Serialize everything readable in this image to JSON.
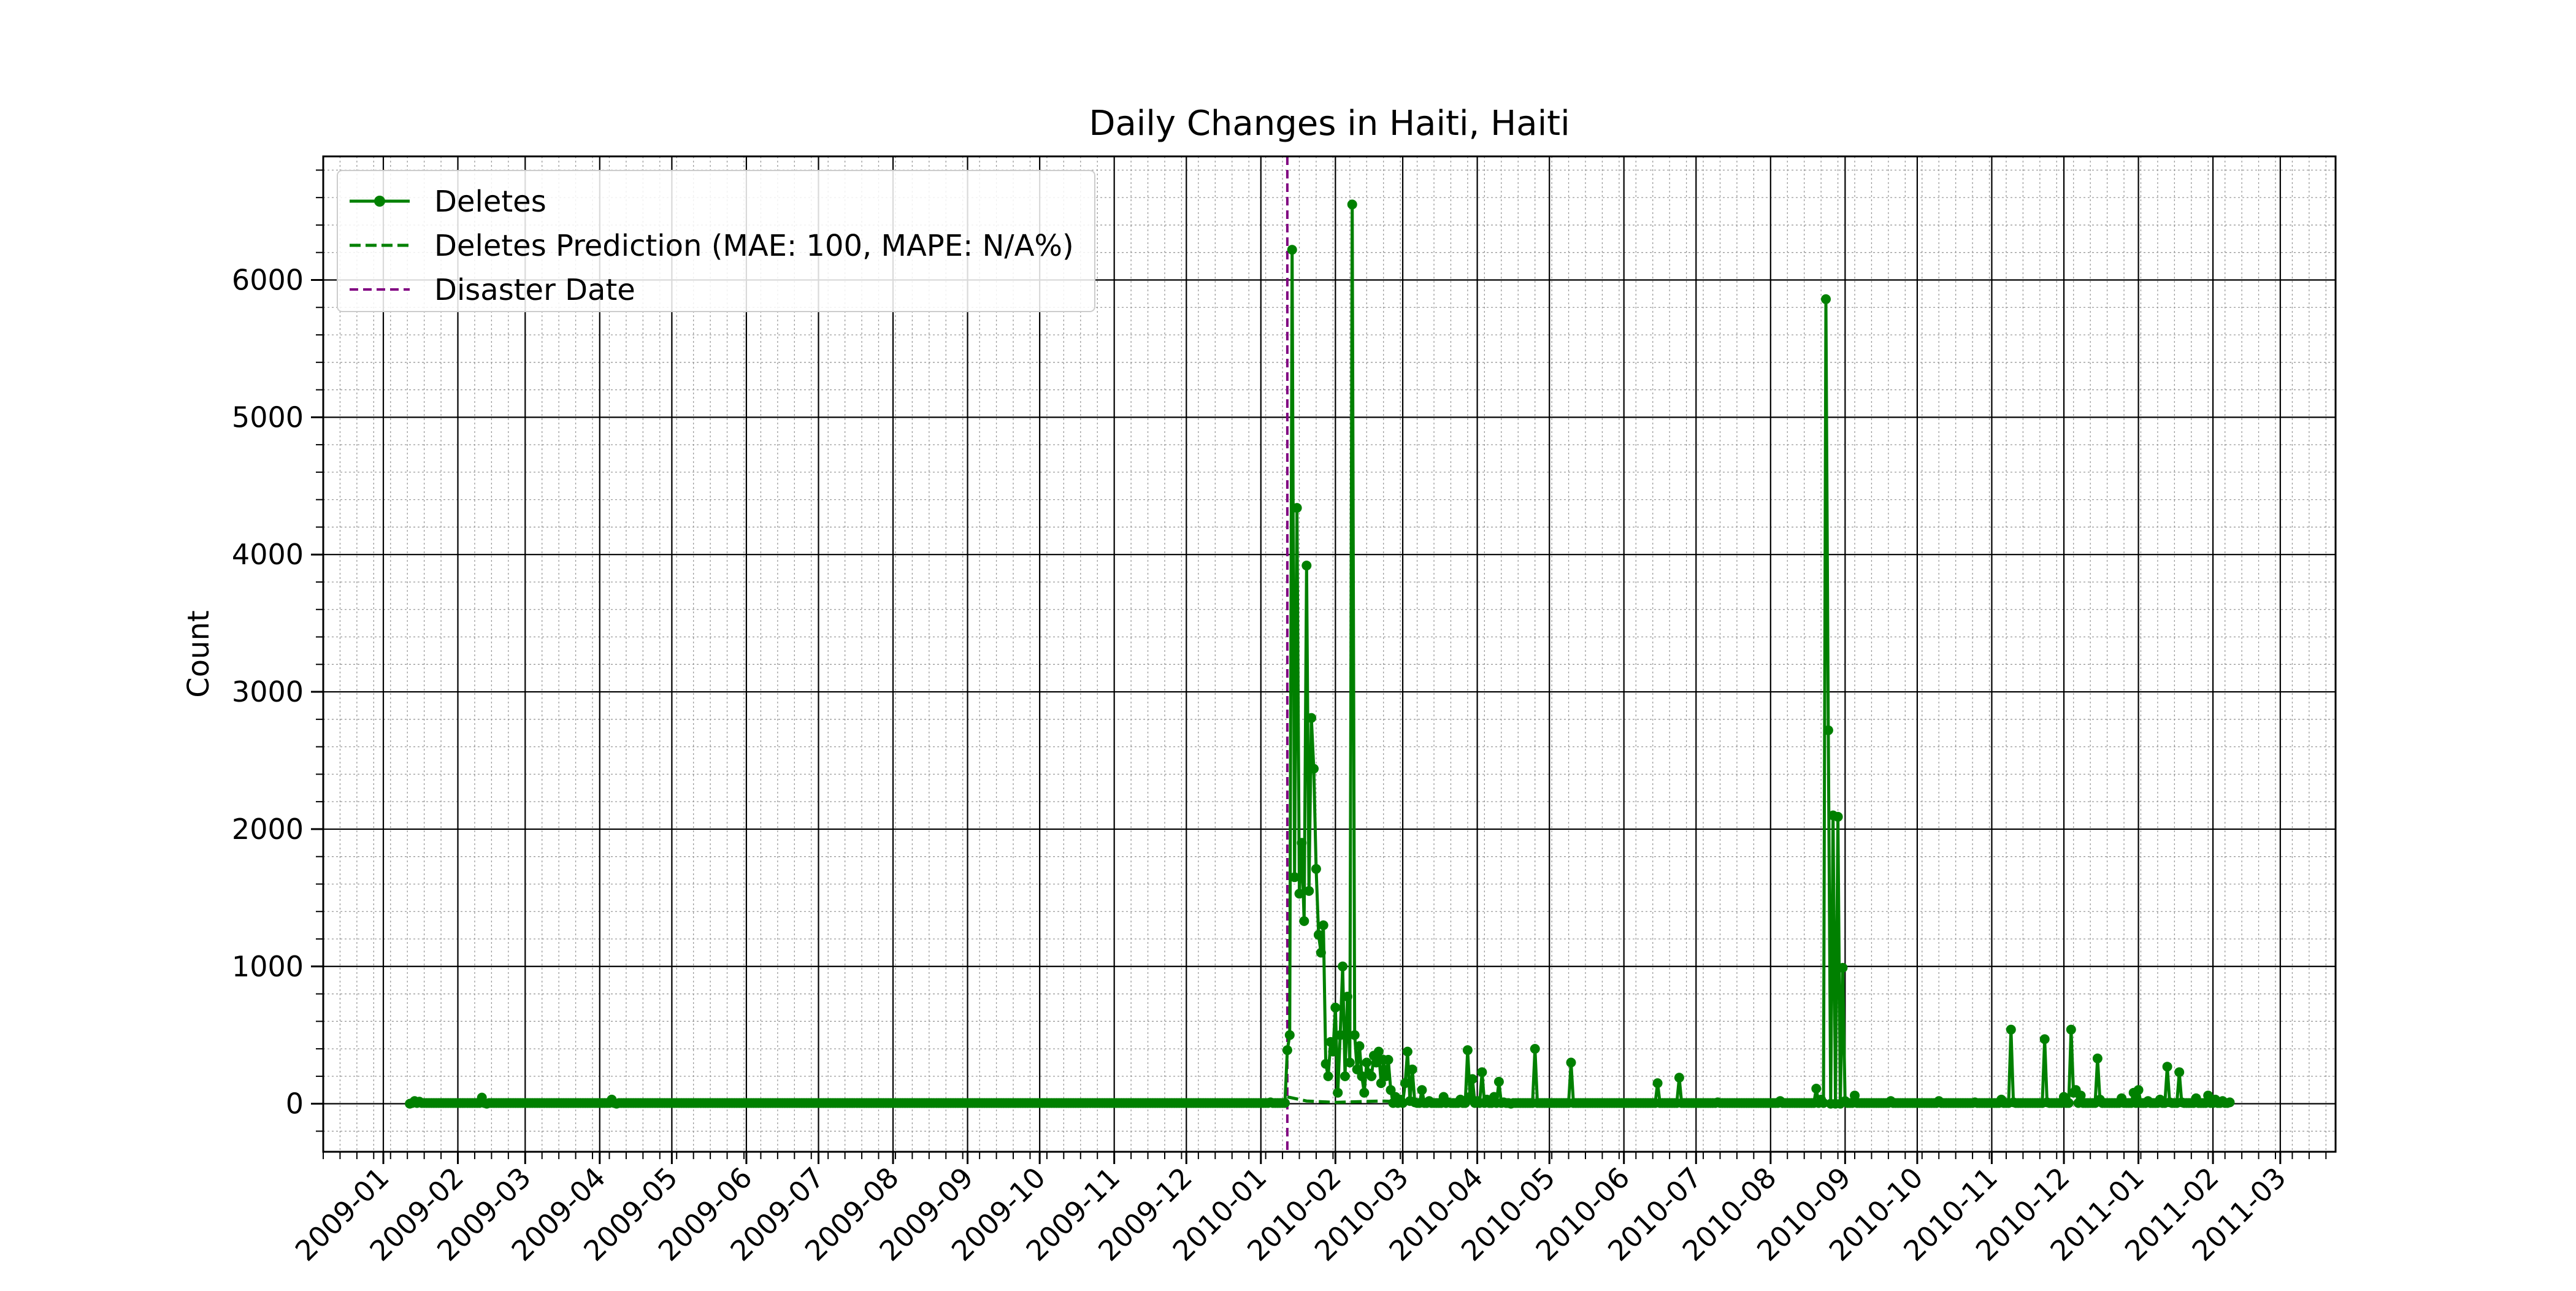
{
  "chart_data": {
    "type": "line",
    "title": "Daily Changes in Haiti, Haiti",
    "xlabel": "",
    "ylabel": "Count",
    "x_axis": "date",
    "xlim": [
      "2008-12-07",
      "2011-03-24"
    ],
    "ylim": [
      -350,
      6900
    ],
    "grid": {
      "major": true,
      "minor": true
    },
    "legend_position": "top-left",
    "x_ticks": [
      "2009-01",
      "2009-02",
      "2009-03",
      "2009-04",
      "2009-05",
      "2009-06",
      "2009-07",
      "2009-08",
      "2009-09",
      "2009-10",
      "2009-11",
      "2009-12",
      "2010-01",
      "2010-02",
      "2010-03",
      "2010-04",
      "2010-05",
      "2010-06",
      "2010-07",
      "2010-08",
      "2010-09",
      "2010-10",
      "2010-11",
      "2010-12",
      "2011-01",
      "2011-02",
      "2011-03"
    ],
    "y_ticks": [
      0,
      1000,
      2000,
      3000,
      4000,
      5000,
      6000
    ],
    "series": [
      {
        "name": "Deletes",
        "style": "solid-line-with-markers",
        "color": "#008000",
        "points": [
          [
            "2009-01-12",
            0
          ],
          [
            "2009-01-14",
            20
          ],
          [
            "2009-01-16",
            15
          ],
          [
            "2009-01-20",
            5
          ],
          [
            "2009-02-11",
            45
          ],
          [
            "2009-02-13",
            0
          ],
          [
            "2009-04-06",
            30
          ],
          [
            "2009-04-08",
            0
          ],
          [
            "2009-06-15",
            5
          ],
          [
            "2009-09-01",
            5
          ],
          [
            "2009-12-01",
            5
          ],
          [
            "2010-01-05",
            10
          ],
          [
            "2010-01-10",
            5
          ],
          [
            "2010-01-12",
            390
          ],
          [
            "2010-01-13",
            500
          ],
          [
            "2010-01-14",
            6220
          ],
          [
            "2010-01-15",
            1650
          ],
          [
            "2010-01-16",
            4340
          ],
          [
            "2010-01-17",
            1530
          ],
          [
            "2010-01-18",
            1900
          ],
          [
            "2010-01-19",
            1330
          ],
          [
            "2010-01-20",
            3920
          ],
          [
            "2010-01-21",
            1550
          ],
          [
            "2010-01-22",
            2810
          ],
          [
            "2010-01-23",
            2440
          ],
          [
            "2010-01-24",
            1710
          ],
          [
            "2010-01-25",
            1230
          ],
          [
            "2010-01-26",
            1100
          ],
          [
            "2010-01-27",
            1300
          ],
          [
            "2010-01-28",
            290
          ],
          [
            "2010-01-29",
            200
          ],
          [
            "2010-01-30",
            450
          ],
          [
            "2010-01-31",
            380
          ],
          [
            "2010-02-01",
            700
          ],
          [
            "2010-02-02",
            80
          ],
          [
            "2010-02-03",
            500
          ],
          [
            "2010-02-04",
            1000
          ],
          [
            "2010-02-05",
            200
          ],
          [
            "2010-02-06",
            780
          ],
          [
            "2010-02-07",
            300
          ],
          [
            "2010-02-08",
            6550
          ],
          [
            "2010-02-09",
            500
          ],
          [
            "2010-02-10",
            250
          ],
          [
            "2010-02-11",
            420
          ],
          [
            "2010-02-12",
            200
          ],
          [
            "2010-02-13",
            80
          ],
          [
            "2010-02-14",
            300
          ],
          [
            "2010-02-15",
            220
          ],
          [
            "2010-02-16",
            200
          ],
          [
            "2010-02-17",
            350
          ],
          [
            "2010-02-18",
            300
          ],
          [
            "2010-02-19",
            380
          ],
          [
            "2010-02-20",
            150
          ],
          [
            "2010-02-21",
            320
          ],
          [
            "2010-02-22",
            200
          ],
          [
            "2010-02-23",
            320
          ],
          [
            "2010-02-24",
            100
          ],
          [
            "2010-02-26",
            50
          ],
          [
            "2010-02-28",
            30
          ],
          [
            "2010-03-02",
            150
          ],
          [
            "2010-03-03",
            380
          ],
          [
            "2010-03-04",
            20
          ],
          [
            "2010-03-05",
            250
          ],
          [
            "2010-03-06",
            10
          ],
          [
            "2010-03-09",
            100
          ],
          [
            "2010-03-12",
            20
          ],
          [
            "2010-03-18",
            50
          ],
          [
            "2010-03-20",
            10
          ],
          [
            "2010-03-25",
            30
          ],
          [
            "2010-03-28",
            390
          ],
          [
            "2010-03-29",
            50
          ],
          [
            "2010-03-30",
            180
          ],
          [
            "2010-04-01",
            20
          ],
          [
            "2010-04-03",
            230
          ],
          [
            "2010-04-05",
            30
          ],
          [
            "2010-04-08",
            50
          ],
          [
            "2010-04-10",
            160
          ],
          [
            "2010-04-12",
            10
          ],
          [
            "2010-04-15",
            0
          ],
          [
            "2010-04-25",
            400
          ],
          [
            "2010-04-26",
            5
          ],
          [
            "2010-05-10",
            300
          ],
          [
            "2010-05-11",
            5
          ],
          [
            "2010-06-15",
            150
          ],
          [
            "2010-06-16",
            5
          ],
          [
            "2010-06-24",
            190
          ],
          [
            "2010-06-25",
            5
          ],
          [
            "2010-07-10",
            10
          ],
          [
            "2010-08-05",
            20
          ],
          [
            "2010-08-20",
            110
          ],
          [
            "2010-08-22",
            30
          ],
          [
            "2010-08-24",
            5860
          ],
          [
            "2010-08-25",
            2720
          ],
          [
            "2010-08-26",
            0
          ],
          [
            "2010-08-27",
            2100
          ],
          [
            "2010-08-28",
            0
          ],
          [
            "2010-08-29",
            2090
          ],
          [
            "2010-08-30",
            0
          ],
          [
            "2010-08-31",
            990
          ],
          [
            "2010-09-01",
            20
          ],
          [
            "2010-09-05",
            60
          ],
          [
            "2010-09-20",
            20
          ],
          [
            "2010-10-10",
            20
          ],
          [
            "2010-10-25",
            10
          ],
          [
            "2010-11-05",
            30
          ],
          [
            "2010-11-09",
            540
          ],
          [
            "2010-11-10",
            10
          ],
          [
            "2010-11-23",
            470
          ],
          [
            "2010-11-24",
            10
          ],
          [
            "2010-12-01",
            50
          ],
          [
            "2010-12-04",
            540
          ],
          [
            "2010-12-05",
            80
          ],
          [
            "2010-12-06",
            100
          ],
          [
            "2010-12-08",
            60
          ],
          [
            "2010-12-15",
            330
          ],
          [
            "2010-12-16",
            30
          ],
          [
            "2010-12-25",
            40
          ],
          [
            "2010-12-30",
            80
          ],
          [
            "2011-01-01",
            100
          ],
          [
            "2011-01-05",
            20
          ],
          [
            "2011-01-10",
            30
          ],
          [
            "2011-01-13",
            270
          ],
          [
            "2011-01-14",
            10
          ],
          [
            "2011-01-18",
            230
          ],
          [
            "2011-01-19",
            10
          ],
          [
            "2011-01-25",
            40
          ],
          [
            "2011-01-30",
            60
          ],
          [
            "2011-02-02",
            30
          ],
          [
            "2011-02-05",
            20
          ],
          [
            "2011-02-08",
            10
          ]
        ]
      },
      {
        "name": "Deletes Prediction (MAE: 100, MAPE: N/A%)",
        "style": "dashed",
        "color": "#008000",
        "points": [
          [
            "2010-01-12",
            50
          ],
          [
            "2010-01-20",
            20
          ],
          [
            "2010-02-01",
            10
          ],
          [
            "2010-02-20",
            20
          ],
          [
            "2010-03-10",
            10
          ],
          [
            "2010-04-01",
            10
          ]
        ]
      }
    ],
    "disaster_date": {
      "name": "Disaster Date",
      "date": "2010-01-12",
      "color": "#800080"
    }
  }
}
